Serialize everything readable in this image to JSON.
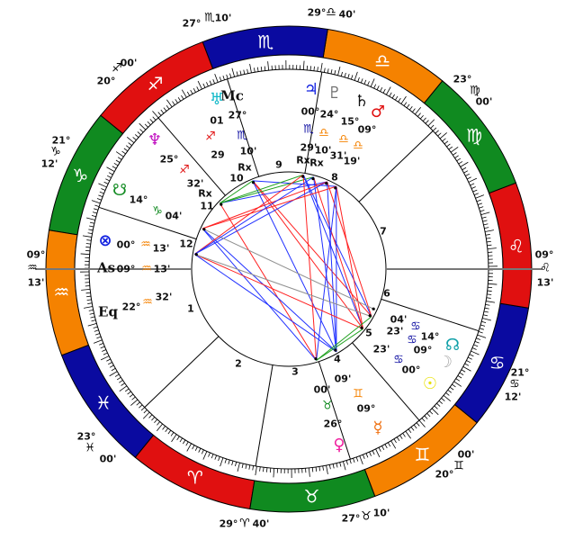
{
  "ascendant": {
    "label": "As",
    "deg": "09°",
    "sign": "aquarius",
    "min": "13'"
  },
  "midheaven": {
    "label": "Mc",
    "deg": "27°",
    "sign": "scorpio",
    "min": "10'"
  },
  "equatorial_ascendant": {
    "label": "Eq",
    "deg": "22°",
    "sign": "aquarius",
    "min": "32'"
  },
  "signs": [
    {
      "key": "aries",
      "glyph": "♈",
      "color": "#e01010"
    },
    {
      "key": "taurus",
      "glyph": "♉",
      "color": "#108a20"
    },
    {
      "key": "gemini",
      "glyph": "♊",
      "color": "#f58200"
    },
    {
      "key": "cancer",
      "glyph": "♋",
      "color": "#0a0aa0"
    },
    {
      "key": "leo",
      "glyph": "♌",
      "color": "#e01010"
    },
    {
      "key": "virgo",
      "glyph": "♍",
      "color": "#108a20"
    },
    {
      "key": "libra",
      "glyph": "♎",
      "color": "#f58200"
    },
    {
      "key": "scorpio",
      "glyph": "♏",
      "color": "#0a0aa0"
    },
    {
      "key": "sagittarius",
      "glyph": "♐",
      "color": "#e01010"
    },
    {
      "key": "capricorn",
      "glyph": "♑",
      "color": "#108a20"
    },
    {
      "key": "aquarius",
      "glyph": "♒",
      "color": "#f58200"
    },
    {
      "key": "pisces",
      "glyph": "♓",
      "color": "#0a0aa0"
    }
  ],
  "house_cusps": [
    {
      "house": "1",
      "deg": "09°",
      "sign": "aquarius",
      "min": "13'"
    },
    {
      "house": "2",
      "deg": "23°",
      "sign": "pisces",
      "min": "00'"
    },
    {
      "house": "3",
      "deg": "29°",
      "sign": "aries",
      "min": "40'"
    },
    {
      "house": "4",
      "deg": "27°",
      "sign": "taurus",
      "min": "10'"
    },
    {
      "house": "5",
      "deg": "20°",
      "sign": "gemini",
      "min": "00'"
    },
    {
      "house": "6",
      "deg": "21°",
      "sign": "cancer",
      "min": "12'"
    },
    {
      "house": "7",
      "deg": "09°",
      "sign": "leo",
      "min": "13'"
    },
    {
      "house": "8",
      "deg": "23°",
      "sign": "virgo",
      "min": "00'"
    },
    {
      "house": "9",
      "deg": "29°",
      "sign": "libra",
      "min": "40'"
    },
    {
      "house": "10",
      "deg": "27°",
      "sign": "scorpio",
      "min": "10'"
    },
    {
      "house": "11",
      "deg": "20°",
      "sign": "sagittarius",
      "min": "00'"
    },
    {
      "house": "12",
      "deg": "21°",
      "sign": "capricorn",
      "min": "12'"
    }
  ],
  "planets": [
    {
      "key": "uranus",
      "glyph": "♅",
      "color": "#10b8c8",
      "deg": "01",
      "sign": "sagittarius",
      "min": "29",
      "retro": "Rx"
    },
    {
      "key": "neptune",
      "glyph": "♆",
      "color": "#c010c0",
      "deg": "25°",
      "sign": "sagittarius",
      "min": "32'",
      "retro": "Rx"
    },
    {
      "key": "jupiter",
      "glyph": "♃",
      "color": "#1020e0",
      "deg": "00°",
      "sign": "scorpio",
      "min": "29'",
      "retro": "Rx"
    },
    {
      "key": "pluto",
      "glyph": "♇",
      "color": "#707070",
      "deg": "24°",
      "sign": "libra",
      "min": "10'",
      "retro": "Rx"
    },
    {
      "key": "saturn",
      "glyph": "♄",
      "color": "#111111",
      "deg": "15°",
      "sign": "libra",
      "min": "31'",
      "retro": ""
    },
    {
      "key": "mars",
      "glyph": "♂",
      "color": "#e01010",
      "deg": "09°",
      "sign": "libra",
      "min": "19'",
      "retro": ""
    },
    {
      "key": "south_node",
      "glyph": "☋",
      "color": "#108a20",
      "deg": "14°",
      "sign": "capricorn",
      "min": "04'",
      "retro": ""
    },
    {
      "key": "part_of_fortune",
      "glyph": "⊗",
      "color": "#1020e0",
      "deg": "00°",
      "sign": "aquarius",
      "min": "13'",
      "retro": ""
    },
    {
      "key": "north_node",
      "glyph": "☊",
      "color": "#10a0a8",
      "deg": "14°",
      "sign": "cancer",
      "min": "04'",
      "retro": ""
    },
    {
      "key": "moon",
      "glyph": "☽",
      "color": "#a8a8a8",
      "deg": "09°",
      "sign": "cancer",
      "min": "23'",
      "retro": ""
    },
    {
      "key": "sun",
      "glyph": "☉",
      "color": "#e8e000",
      "deg": "00°",
      "sign": "cancer",
      "min": "23'",
      "retro": ""
    },
    {
      "key": "mercury",
      "glyph": "☿",
      "color": "#f07010",
      "deg": "09°",
      "sign": "gemini",
      "min": "09'",
      "retro": ""
    },
    {
      "key": "venus",
      "glyph": "♀",
      "color": "#f020a0",
      "deg": "26°",
      "sign": "taurus",
      "min": "00'",
      "retro": ""
    }
  ],
  "house_numbers": [
    "1",
    "2",
    "3",
    "4",
    "5",
    "6",
    "7",
    "8",
    "9",
    "10",
    "11",
    "12"
  ],
  "aspect_colors": {
    "hard": "#ff2020",
    "soft": "#2030ff",
    "minor": "#20a020",
    "conjunction": "#909090"
  },
  "aspects": [
    [
      "uranus",
      "sun",
      "hard"
    ],
    [
      "uranus",
      "moon",
      "hard"
    ],
    [
      "uranus",
      "mercury",
      "soft"
    ],
    [
      "uranus",
      "mars",
      "soft"
    ],
    [
      "neptune",
      "venus",
      "hard"
    ],
    [
      "neptune",
      "saturn",
      "soft"
    ],
    [
      "neptune",
      "pluto",
      "minor"
    ],
    [
      "neptune",
      "jupiter",
      "minor"
    ],
    [
      "jupiter",
      "venus",
      "hard"
    ],
    [
      "jupiter",
      "moon",
      "soft"
    ],
    [
      "jupiter",
      "sun",
      "soft"
    ],
    [
      "pluto",
      "sun",
      "hard"
    ],
    [
      "pluto",
      "mercury",
      "soft"
    ],
    [
      "saturn",
      "moon",
      "hard"
    ],
    [
      "saturn",
      "mercury",
      "soft"
    ],
    [
      "mars",
      "sun",
      "hard"
    ],
    [
      "mars",
      "mercury",
      "soft"
    ],
    [
      "mars",
      "venus",
      "soft"
    ],
    [
      "south_node",
      "mercury",
      "soft"
    ],
    [
      "south_node",
      "venus",
      "soft"
    ],
    [
      "part_of_fortune",
      "sun",
      "hard"
    ],
    [
      "part_of_fortune",
      "mercury",
      "soft"
    ],
    [
      "part_of_fortune",
      "saturn",
      "soft"
    ],
    [
      "moon",
      "venus",
      "minor"
    ],
    [
      "sun",
      "venus",
      "minor"
    ],
    [
      "north_node",
      "south_node",
      "conjunction"
    ],
    [
      "uranus",
      "neptune",
      "minor"
    ],
    [
      "part_of_fortune",
      "moon",
      "conjunction"
    ],
    [
      "mars",
      "south_node",
      "hard"
    ],
    [
      "saturn",
      "south_node",
      "hard"
    ],
    [
      "jupiter",
      "part_of_fortune",
      "hard"
    ],
    [
      "pluto",
      "part_of_fortune",
      "soft"
    ]
  ]
}
